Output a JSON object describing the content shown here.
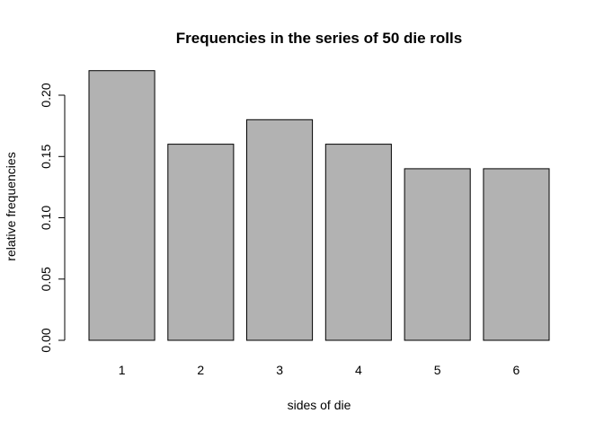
{
  "chart_data": {
    "type": "bar",
    "title": "Frequencies in the series of 50 die rolls",
    "xlabel": "sides of die",
    "ylabel": "relative frequencies",
    "categories": [
      "1",
      "2",
      "3",
      "4",
      "5",
      "6"
    ],
    "values": [
      0.22,
      0.16,
      0.18,
      0.16,
      0.14,
      0.14
    ],
    "ylim": [
      0,
      0.22
    ],
    "yticks": [
      0.0,
      0.05,
      0.1,
      0.15,
      0.2
    ],
    "ytick_labels": [
      "0.00",
      "0.05",
      "0.10",
      "0.15",
      "0.20"
    ],
    "grid": false,
    "bar_color": "#b2b2b2",
    "edge_color": "#000000"
  }
}
